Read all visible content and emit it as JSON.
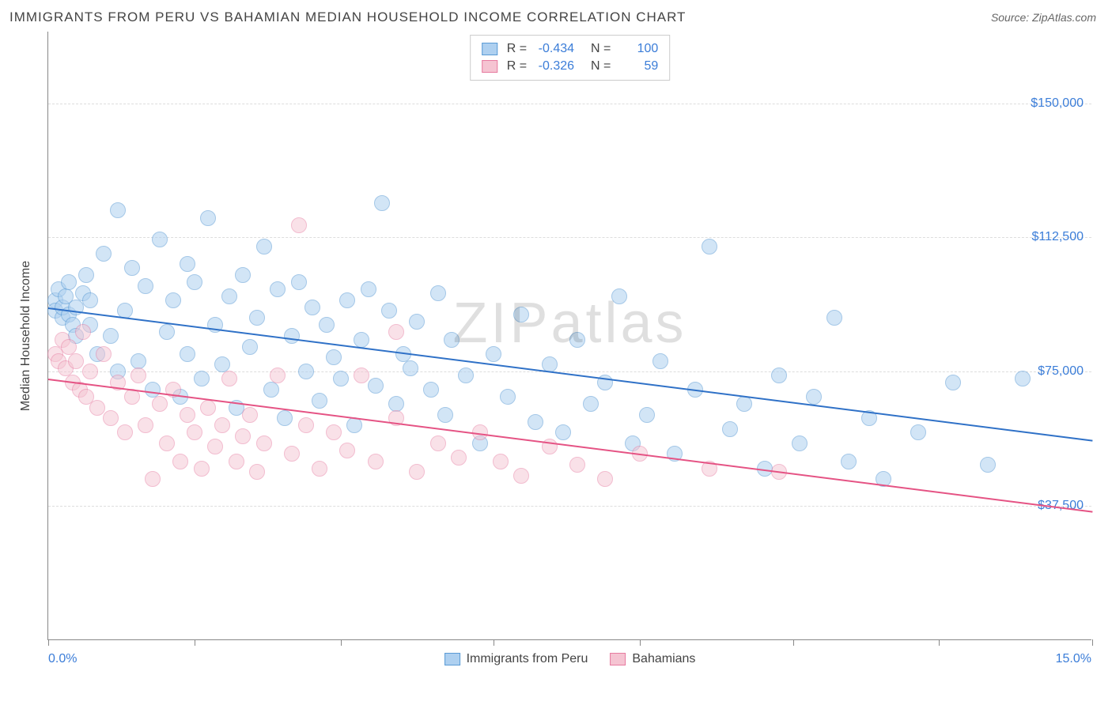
{
  "header": {
    "title": "IMMIGRANTS FROM PERU VS BAHAMIAN MEDIAN HOUSEHOLD INCOME CORRELATION CHART",
    "source_prefix": "Source: ",
    "source_name": "ZipAtlas.com"
  },
  "watermark": "ZIPatlas",
  "chart": {
    "type": "scatter",
    "yaxis_title": "Median Household Income",
    "xlim": [
      0,
      15
    ],
    "ylim": [
      0,
      170000
    ],
    "x_tick_positions": [
      0,
      2.1,
      4.2,
      6.4,
      8.5,
      10.7,
      12.8,
      15
    ],
    "x_label_min": "0.0%",
    "x_label_max": "15.0%",
    "y_gridlines": [
      37500,
      75000,
      112500,
      150000
    ],
    "y_labels": [
      "$37,500",
      "$75,000",
      "$112,500",
      "$150,000"
    ],
    "grid_color": "#dddddd",
    "axis_color": "#888888",
    "background_color": "#ffffff",
    "label_color": "#3b7dd8",
    "title_color": "#444444",
    "label_fontsize": 16,
    "title_fontsize": 17
  },
  "series": [
    {
      "name": "Immigrants from Peru",
      "fill": "#aed0f0",
      "stroke": "#5a9bd5",
      "trend_color": "#2f71c7",
      "fill_opacity": 0.55,
      "marker_radius": 10,
      "R": "-0.434",
      "N": "100",
      "trend": {
        "x1": 0,
        "y1": 93000,
        "x2": 15,
        "y2": 56000
      },
      "points": [
        [
          0.1,
          95000
        ],
        [
          0.1,
          92000
        ],
        [
          0.15,
          98000
        ],
        [
          0.2,
          90000
        ],
        [
          0.2,
          93000
        ],
        [
          0.25,
          96000
        ],
        [
          0.3,
          91000
        ],
        [
          0.3,
          100000
        ],
        [
          0.35,
          88000
        ],
        [
          0.4,
          93000
        ],
        [
          0.4,
          85000
        ],
        [
          0.5,
          97000
        ],
        [
          0.55,
          102000
        ],
        [
          0.6,
          88000
        ],
        [
          0.6,
          95000
        ],
        [
          0.7,
          80000
        ],
        [
          0.8,
          108000
        ],
        [
          0.9,
          85000
        ],
        [
          1.0,
          120000
        ],
        [
          1.0,
          75000
        ],
        [
          1.1,
          92000
        ],
        [
          1.2,
          104000
        ],
        [
          1.3,
          78000
        ],
        [
          1.4,
          99000
        ],
        [
          1.5,
          70000
        ],
        [
          1.6,
          112000
        ],
        [
          1.7,
          86000
        ],
        [
          1.8,
          95000
        ],
        [
          1.9,
          68000
        ],
        [
          2.0,
          105000
        ],
        [
          2.0,
          80000
        ],
        [
          2.1,
          100000
        ],
        [
          2.2,
          73000
        ],
        [
          2.3,
          118000
        ],
        [
          2.4,
          88000
        ],
        [
          2.5,
          77000
        ],
        [
          2.6,
          96000
        ],
        [
          2.7,
          65000
        ],
        [
          2.8,
          102000
        ],
        [
          2.9,
          82000
        ],
        [
          3.0,
          90000
        ],
        [
          3.1,
          110000
        ],
        [
          3.2,
          70000
        ],
        [
          3.3,
          98000
        ],
        [
          3.4,
          62000
        ],
        [
          3.5,
          85000
        ],
        [
          3.6,
          100000
        ],
        [
          3.7,
          75000
        ],
        [
          3.8,
          93000
        ],
        [
          3.9,
          67000
        ],
        [
          4.0,
          88000
        ],
        [
          4.1,
          79000
        ],
        [
          4.2,
          73000
        ],
        [
          4.3,
          95000
        ],
        [
          4.4,
          60000
        ],
        [
          4.5,
          84000
        ],
        [
          4.6,
          98000
        ],
        [
          4.7,
          71000
        ],
        [
          4.8,
          122000
        ],
        [
          4.9,
          92000
        ],
        [
          5.0,
          66000
        ],
        [
          5.1,
          80000
        ],
        [
          5.2,
          76000
        ],
        [
          5.3,
          89000
        ],
        [
          5.5,
          70000
        ],
        [
          5.6,
          97000
        ],
        [
          5.7,
          63000
        ],
        [
          5.8,
          84000
        ],
        [
          6.0,
          74000
        ],
        [
          6.2,
          55000
        ],
        [
          6.4,
          80000
        ],
        [
          6.6,
          68000
        ],
        [
          6.8,
          91000
        ],
        [
          7.0,
          61000
        ],
        [
          7.2,
          77000
        ],
        [
          7.4,
          58000
        ],
        [
          7.6,
          84000
        ],
        [
          7.8,
          66000
        ],
        [
          8.0,
          72000
        ],
        [
          8.2,
          96000
        ],
        [
          8.4,
          55000
        ],
        [
          8.6,
          63000
        ],
        [
          8.8,
          78000
        ],
        [
          9.0,
          52000
        ],
        [
          9.3,
          70000
        ],
        [
          9.5,
          110000
        ],
        [
          9.8,
          59000
        ],
        [
          10.0,
          66000
        ],
        [
          10.3,
          48000
        ],
        [
          10.5,
          74000
        ],
        [
          10.8,
          55000
        ],
        [
          11.0,
          68000
        ],
        [
          11.3,
          90000
        ],
        [
          11.5,
          50000
        ],
        [
          11.8,
          62000
        ],
        [
          12.0,
          45000
        ],
        [
          12.5,
          58000
        ],
        [
          13.0,
          72000
        ],
        [
          13.5,
          49000
        ],
        [
          14.0,
          73000
        ]
      ]
    },
    {
      "name": "Bahamians",
      "fill": "#f5c4d2",
      "stroke": "#e77ba0",
      "trend_color": "#e55384",
      "fill_opacity": 0.5,
      "marker_radius": 10,
      "R": "-0.326",
      "N": "59",
      "trend": {
        "x1": 0,
        "y1": 73000,
        "x2": 15,
        "y2": 36000
      },
      "points": [
        [
          0.1,
          80000
        ],
        [
          0.15,
          78000
        ],
        [
          0.2,
          84000
        ],
        [
          0.25,
          76000
        ],
        [
          0.3,
          82000
        ],
        [
          0.35,
          72000
        ],
        [
          0.4,
          78000
        ],
        [
          0.45,
          70000
        ],
        [
          0.5,
          86000
        ],
        [
          0.55,
          68000
        ],
        [
          0.6,
          75000
        ],
        [
          0.7,
          65000
        ],
        [
          0.8,
          80000
        ],
        [
          0.9,
          62000
        ],
        [
          1.0,
          72000
        ],
        [
          1.1,
          58000
        ],
        [
          1.2,
          68000
        ],
        [
          1.3,
          74000
        ],
        [
          1.4,
          60000
        ],
        [
          1.5,
          45000
        ],
        [
          1.6,
          66000
        ],
        [
          1.7,
          55000
        ],
        [
          1.8,
          70000
        ],
        [
          1.9,
          50000
        ],
        [
          2.0,
          63000
        ],
        [
          2.1,
          58000
        ],
        [
          2.2,
          48000
        ],
        [
          2.3,
          65000
        ],
        [
          2.4,
          54000
        ],
        [
          2.5,
          60000
        ],
        [
          2.6,
          73000
        ],
        [
          2.7,
          50000
        ],
        [
          2.8,
          57000
        ],
        [
          2.9,
          63000
        ],
        [
          3.0,
          47000
        ],
        [
          3.1,
          55000
        ],
        [
          3.3,
          74000
        ],
        [
          3.5,
          52000
        ],
        [
          3.6,
          116000
        ],
        [
          3.7,
          60000
        ],
        [
          3.9,
          48000
        ],
        [
          4.1,
          58000
        ],
        [
          4.3,
          53000
        ],
        [
          4.5,
          74000
        ],
        [
          4.7,
          50000
        ],
        [
          5.0,
          62000
        ],
        [
          5.0,
          86000
        ],
        [
          5.3,
          47000
        ],
        [
          5.6,
          55000
        ],
        [
          5.9,
          51000
        ],
        [
          6.2,
          58000
        ],
        [
          6.5,
          50000
        ],
        [
          6.8,
          46000
        ],
        [
          7.2,
          54000
        ],
        [
          7.6,
          49000
        ],
        [
          8.0,
          45000
        ],
        [
          8.5,
          52000
        ],
        [
          9.5,
          48000
        ],
        [
          10.5,
          47000
        ]
      ]
    }
  ],
  "legend_bottom": {
    "items": [
      "Immigrants from Peru",
      "Bahamians"
    ]
  }
}
